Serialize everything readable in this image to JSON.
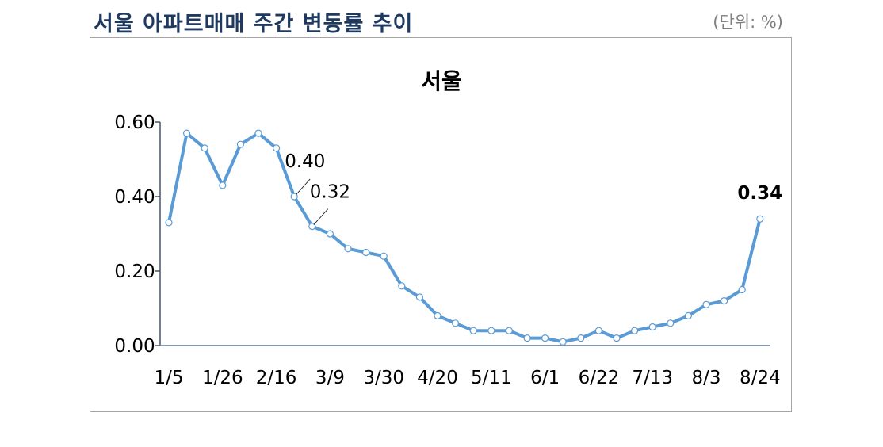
{
  "header": {
    "title": "서울 아파트매매 주간 변동률 추이",
    "unit": "(단위: %)"
  },
  "colors": {
    "title": "#1f3a60",
    "line": "#5b9bd5",
    "axis": "#44546a",
    "frame": "#a6a6a6"
  },
  "chart_data": {
    "type": "line",
    "title": "서울",
    "xlabel": "",
    "ylabel": "",
    "ylim": [
      0,
      0.6
    ],
    "yticks": [
      "0.00",
      "0.20",
      "0.40",
      "0.60"
    ],
    "grid": false,
    "legend": null,
    "x": [
      "1/5",
      "1/12",
      "1/19",
      "1/26",
      "2/2",
      "2/9",
      "2/16",
      "2/23",
      "3/2",
      "3/9",
      "3/16",
      "3/23",
      "3/30",
      "4/6",
      "4/13",
      "4/20",
      "4/27",
      "5/4",
      "5/11",
      "5/18",
      "5/25",
      "6/1",
      "6/8",
      "6/15",
      "6/22",
      "6/29",
      "7/6",
      "7/13",
      "7/20",
      "7/27",
      "8/3",
      "8/10",
      "8/17",
      "8/24"
    ],
    "xtick_labels": [
      "1/5",
      "1/26",
      "2/16",
      "3/9",
      "3/30",
      "4/20",
      "5/11",
      "6/1",
      "6/22",
      "7/13",
      "8/3",
      "8/24"
    ],
    "series": [
      {
        "name": "서울",
        "values": [
          0.33,
          0.57,
          0.53,
          0.43,
          0.54,
          0.57,
          0.53,
          0.4,
          0.32,
          0.3,
          0.26,
          0.25,
          0.24,
          0.16,
          0.13,
          0.08,
          0.06,
          0.04,
          0.04,
          0.04,
          0.02,
          0.02,
          0.01,
          0.02,
          0.04,
          0.02,
          0.04,
          0.05,
          0.06,
          0.08,
          0.11,
          0.12,
          0.15,
          0.34
        ]
      }
    ],
    "annotations": [
      {
        "index": 7,
        "text": "0.40",
        "bold": false
      },
      {
        "index": 8,
        "text": "0.32",
        "bold": false
      },
      {
        "index": 33,
        "text": "0.34",
        "bold": true
      }
    ]
  }
}
